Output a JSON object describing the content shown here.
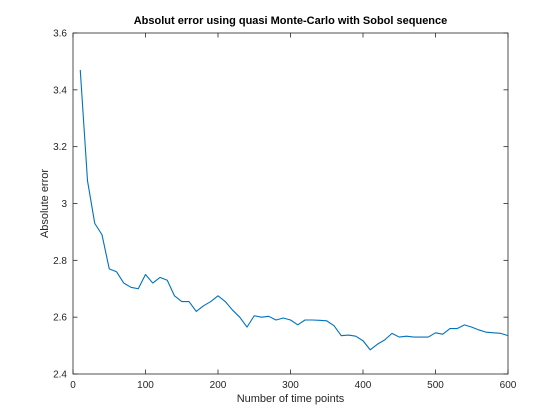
{
  "chart_data": {
    "type": "line",
    "title": "Absolut error using quasi Monte-Carlo with Sobol sequence",
    "xlabel": "Number of time points",
    "ylabel": "Absolute error",
    "xlim": [
      0,
      600
    ],
    "ylim": [
      2.4,
      3.6
    ],
    "xticks": [
      0,
      100,
      200,
      300,
      400,
      500,
      600
    ],
    "xtick_labels": [
      "0",
      "100",
      "200",
      "300",
      "400",
      "500",
      "600"
    ],
    "yticks": [
      2.4,
      2.6,
      2.8,
      3.0,
      3.2,
      3.4,
      3.6
    ],
    "ytick_labels": [
      "2.4",
      "2.6",
      "2.8",
      "3",
      "3.2",
      "3.4",
      "3.6"
    ],
    "grid": false,
    "line_color": "#0072BD",
    "series": [
      {
        "x": [
          10,
          20,
          30,
          40,
          50,
          60,
          70,
          80,
          90,
          100,
          110,
          120,
          130,
          140,
          150,
          160,
          170,
          180,
          190,
          200,
          210,
          220,
          230,
          240,
          250,
          260,
          270,
          280,
          290,
          300,
          310,
          320,
          330,
          340,
          350,
          360,
          370,
          380,
          390,
          400,
          410,
          420,
          430,
          440,
          450,
          460,
          470,
          480,
          490,
          500,
          510,
          520,
          530,
          540,
          550,
          560,
          570,
          580,
          590,
          600
        ],
        "y": [
          3.47,
          3.08,
          2.93,
          2.89,
          2.77,
          2.76,
          2.72,
          2.705,
          2.7,
          2.75,
          2.72,
          2.74,
          2.73,
          2.675,
          2.655,
          2.655,
          2.62,
          2.64,
          2.655,
          2.675,
          2.655,
          2.625,
          2.6,
          2.565,
          2.605,
          2.6,
          2.603,
          2.59,
          2.597,
          2.59,
          2.573,
          2.59,
          2.59,
          2.589,
          2.587,
          2.57,
          2.535,
          2.537,
          2.533,
          2.517,
          2.485,
          2.505,
          2.52,
          2.543,
          2.53,
          2.533,
          2.53,
          2.53,
          2.53,
          2.545,
          2.54,
          2.56,
          2.56,
          2.573,
          2.565,
          2.555,
          2.547,
          2.545,
          2.543,
          2.535
        ]
      }
    ]
  }
}
